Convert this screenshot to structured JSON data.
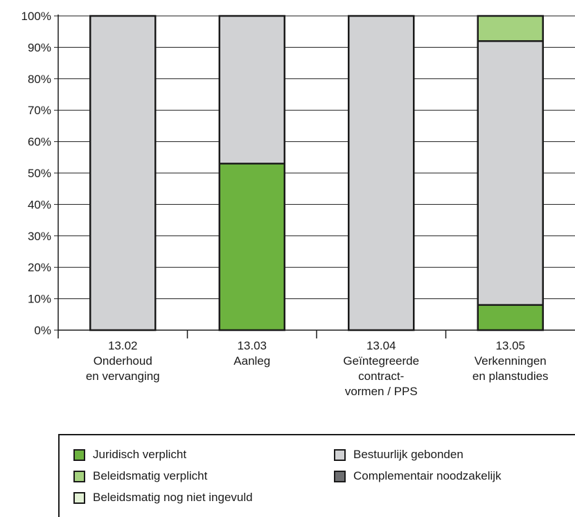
{
  "chart_data": {
    "type": "bar",
    "stacked": true,
    "categories": [
      [
        "13.02",
        "Onderhoud",
        "en vervanging"
      ],
      [
        "13.03",
        "Aanleg"
      ],
      [
        "13.04",
        "Geïntegreerde",
        "contract-",
        "vormen / PPS"
      ],
      [
        "13.05",
        "Verkenningen",
        "en planstudies"
      ]
    ],
    "series": [
      {
        "name": "Juridisch verplicht",
        "color": "#6db33f",
        "values": [
          0,
          53,
          0,
          8
        ]
      },
      {
        "name": "Beleidsmatig verplicht",
        "color": "#a5d27f",
        "values": [
          0,
          0,
          0,
          8
        ]
      },
      {
        "name": "Beleidsmatig nog niet ingevuld",
        "color": "#e3f1d5",
        "values": [
          0,
          0,
          0,
          0
        ]
      },
      {
        "name": "Bestuurlijk gebonden",
        "color": "#d1d2d4",
        "values": [
          100,
          47,
          100,
          84
        ]
      },
      {
        "name": "Complementair noodzakelijk",
        "color": "#6d6e70",
        "values": [
          0,
          0,
          0,
          0
        ]
      }
    ],
    "stack_order": [
      "Juridisch verplicht",
      "Bestuurlijk gebonden",
      "Beleidsmatig verplicht"
    ],
    "yticks": [
      "0%",
      "10%",
      "20%",
      "30%",
      "40%",
      "50%",
      "60%",
      "70%",
      "80%",
      "90%",
      "100%"
    ],
    "ylim": [
      0,
      100
    ],
    "grid": true,
    "legend_position": "bottom"
  },
  "legend": {
    "items": [
      {
        "label": "Juridisch verplicht",
        "color": "#6db33f"
      },
      {
        "label": "Beleidsmatig verplicht",
        "color": "#a5d27f"
      },
      {
        "label": "Beleidsmatig nog niet ingevuld",
        "color": "#e3f1d5"
      },
      {
        "label": "Bestuurlijk gebonden",
        "color": "#d1d2d4"
      },
      {
        "label": "Complementair noodzakelijk",
        "color": "#6d6e70"
      }
    ]
  }
}
